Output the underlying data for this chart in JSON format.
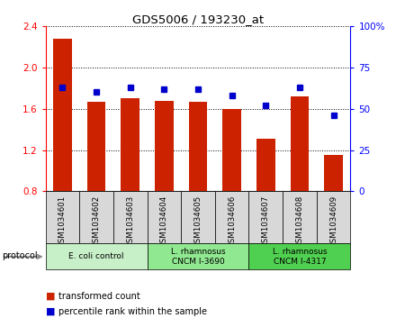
{
  "title": "GDS5006 / 193230_at",
  "samples": [
    "GSM1034601",
    "GSM1034602",
    "GSM1034603",
    "GSM1034604",
    "GSM1034605",
    "GSM1034606",
    "GSM1034607",
    "GSM1034608",
    "GSM1034609"
  ],
  "transformed_count": [
    2.28,
    1.67,
    1.7,
    1.68,
    1.67,
    1.6,
    1.31,
    1.72,
    1.15
  ],
  "percentile_rank": [
    63,
    60,
    63,
    62,
    62,
    58,
    52,
    63,
    46
  ],
  "ylim_left": [
    0.8,
    2.4
  ],
  "ylim_right": [
    0,
    100
  ],
  "yticks_left": [
    0.8,
    1.2,
    1.6,
    2.0,
    2.4
  ],
  "yticks_right": [
    0,
    25,
    50,
    75,
    100
  ],
  "ytick_right_labels": [
    "0",
    "25",
    "50",
    "75",
    "100%"
  ],
  "protocols": [
    {
      "label": "E. coli control",
      "indices": [
        0,
        1,
        2
      ],
      "color": "#c8f0c8"
    },
    {
      "label": "L. rhamnosus\nCNCM I-3690",
      "indices": [
        3,
        4,
        5
      ],
      "color": "#90e890"
    },
    {
      "label": "L. rhamnosus\nCNCM I-4317",
      "indices": [
        6,
        7,
        8
      ],
      "color": "#50d050"
    }
  ],
  "bar_color": "#cc2200",
  "dot_color": "#0000cc",
  "bar_width": 0.55,
  "bg_color": "#d8d8d8",
  "legend_items": [
    {
      "label": "transformed count",
      "color": "#cc2200"
    },
    {
      "label": "percentile rank within the sample",
      "color": "#0000cc"
    }
  ]
}
